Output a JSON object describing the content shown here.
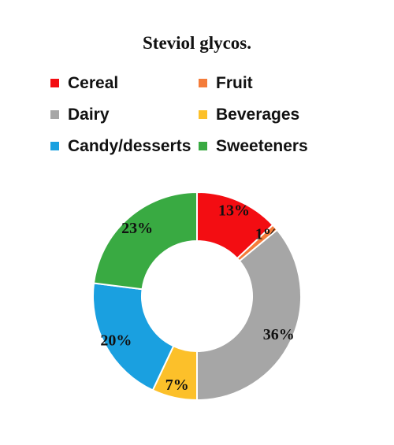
{
  "chart_data": {
    "type": "pie",
    "subtype": "donut",
    "title": "Steviol glycos.",
    "legend_position": "top",
    "categories": [
      "Cereal",
      "Fruit",
      "Dairy",
      "Beverages",
      "Candy/desserts",
      "Sweeteners"
    ],
    "values": [
      13,
      1,
      36,
      7,
      20,
      23
    ],
    "data_labels": [
      "13%",
      "1%",
      "36%",
      "7%",
      "20%",
      "23%"
    ],
    "colors": [
      "#f30d12",
      "#f47c3a",
      "#a6a6a6",
      "#fcc02a",
      "#1aa0e0",
      "#39aa42"
    ]
  }
}
